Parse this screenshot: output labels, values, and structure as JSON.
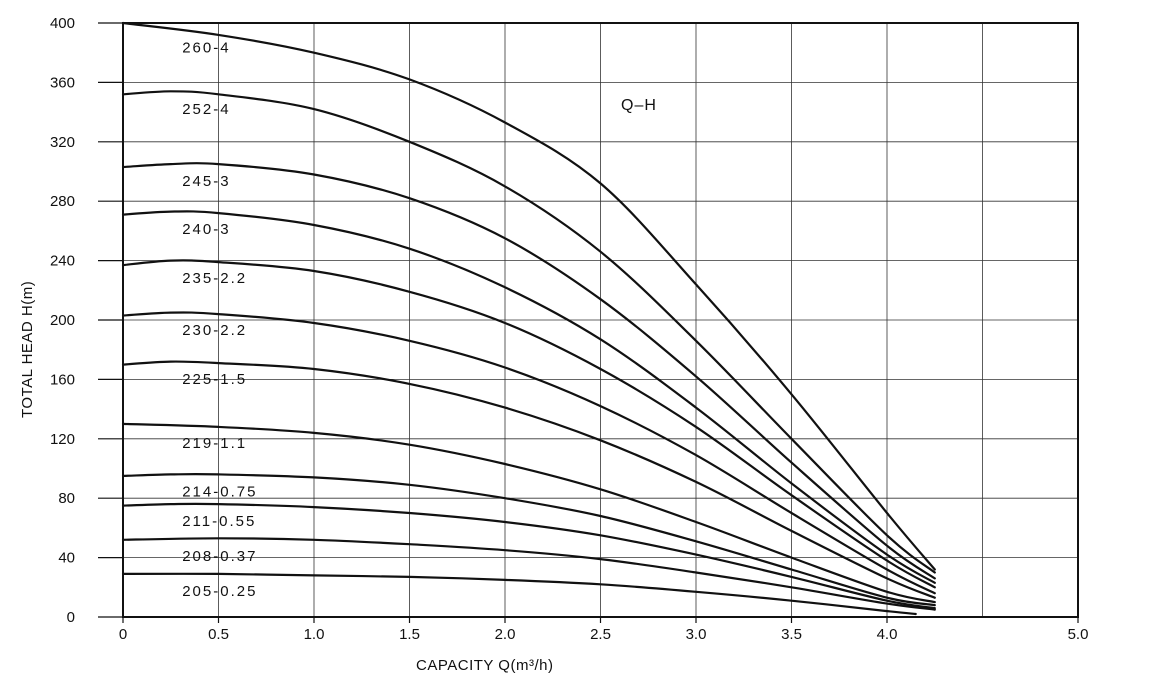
{
  "chart_data": {
    "type": "line",
    "title": "",
    "annotation": "Q–H",
    "xlabel": "CAPACITY  Q(m³/h)",
    "ylabel": "TOTAL HEAD  H(m)",
    "xlim": [
      0,
      5.0
    ],
    "ylim": [
      0,
      400
    ],
    "xticks": [
      0,
      0.5,
      1.0,
      1.5,
      2.0,
      2.5,
      3.0,
      3.5,
      4.0,
      5.0
    ],
    "xtick_labels": [
      "0",
      "0.5",
      "1.0",
      "1.5",
      "2.0",
      "2.5",
      "3.0",
      "3.5",
      "4.0",
      "5.0"
    ],
    "yticks": [
      0,
      40,
      80,
      120,
      160,
      200,
      240,
      280,
      320,
      360,
      400
    ],
    "ytick_labels": [
      "0",
      "40",
      "80",
      "120",
      "160",
      "200",
      "240",
      "280",
      "320",
      "360",
      "400"
    ],
    "grid": true,
    "series": [
      {
        "name": "260-4",
        "x": [
          0,
          0.5,
          1.0,
          1.5,
          2.0,
          2.5,
          3.0,
          3.5,
          4.0,
          4.25
        ],
        "y": [
          400,
          392,
          380,
          362,
          333,
          292,
          224,
          150,
          70,
          32
        ]
      },
      {
        "name": "252-4",
        "x": [
          0,
          0.25,
          0.5,
          1.0,
          1.5,
          2.0,
          2.5,
          3.0,
          3.5,
          4.0,
          4.25
        ],
        "y": [
          352,
          354,
          352,
          342,
          320,
          290,
          246,
          186,
          120,
          55,
          30
        ]
      },
      {
        "name": "245-3",
        "x": [
          0,
          0.25,
          0.5,
          1.0,
          1.5,
          2.0,
          2.5,
          3.0,
          3.5,
          4.0,
          4.25
        ],
        "y": [
          303,
          305,
          305,
          298,
          282,
          255,
          214,
          162,
          104,
          48,
          26
        ]
      },
      {
        "name": "240-3",
        "x": [
          0,
          0.25,
          0.5,
          1.0,
          1.5,
          2.0,
          2.5,
          3.0,
          3.5,
          4.0,
          4.25
        ],
        "y": [
          271,
          273,
          272,
          264,
          248,
          222,
          187,
          141,
          90,
          42,
          23
        ]
      },
      {
        "name": "235-2.2",
        "x": [
          0,
          0.25,
          0.5,
          1.0,
          1.5,
          2.0,
          2.5,
          3.0,
          3.5,
          4.0,
          4.25
        ],
        "y": [
          237,
          240,
          239,
          233,
          219,
          198,
          167,
          128,
          82,
          38,
          20
        ]
      },
      {
        "name": "230-2.2",
        "x": [
          0,
          0.25,
          0.5,
          1.0,
          1.5,
          2.0,
          2.5,
          3.0,
          3.5,
          4.0,
          4.25
        ],
        "y": [
          203,
          205,
          204,
          198,
          186,
          168,
          142,
          109,
          70,
          32,
          16
        ]
      },
      {
        "name": "225-1.5",
        "x": [
          0,
          0.25,
          0.5,
          1.0,
          1.5,
          2.0,
          2.5,
          3.0,
          3.5,
          4.0,
          4.25
        ],
        "y": [
          170,
          172,
          171,
          167,
          157,
          141,
          119,
          91,
          58,
          26,
          13
        ]
      },
      {
        "name": "219-1.1",
        "x": [
          0,
          0.5,
          1.0,
          1.5,
          2.0,
          2.5,
          3.0,
          3.5,
          4.0,
          4.25
        ],
        "y": [
          130,
          128,
          124,
          116,
          103,
          86,
          64,
          40,
          17,
          10
        ]
      },
      {
        "name": "214-0.75",
        "x": [
          0,
          0.25,
          0.5,
          1.0,
          1.5,
          2.0,
          2.5,
          3.0,
          3.5,
          4.0,
          4.25
        ],
        "y": [
          95,
          96,
          96,
          94,
          89,
          80,
          68,
          51,
          32,
          13,
          8
        ]
      },
      {
        "name": "211-0.55",
        "x": [
          0,
          0.25,
          0.5,
          1.0,
          1.5,
          2.0,
          2.5,
          3.0,
          3.5,
          4.0,
          4.25
        ],
        "y": [
          75,
          76,
          76,
          74,
          70,
          64,
          55,
          42,
          27,
          11,
          6
        ]
      },
      {
        "name": "208-0.37",
        "x": [
          0,
          0.5,
          1.0,
          1.5,
          2.0,
          2.5,
          3.0,
          3.5,
          4.0,
          4.25
        ],
        "y": [
          52,
          53,
          52,
          49,
          45,
          39,
          30,
          20,
          9,
          5
        ]
      },
      {
        "name": "205-0.25",
        "x": [
          0,
          0.5,
          1.0,
          1.5,
          2.0,
          2.5,
          3.0,
          3.5,
          4.0,
          4.15
        ],
        "y": [
          29,
          29,
          28,
          27,
          25,
          22,
          17,
          11,
          4,
          2
        ]
      }
    ]
  }
}
